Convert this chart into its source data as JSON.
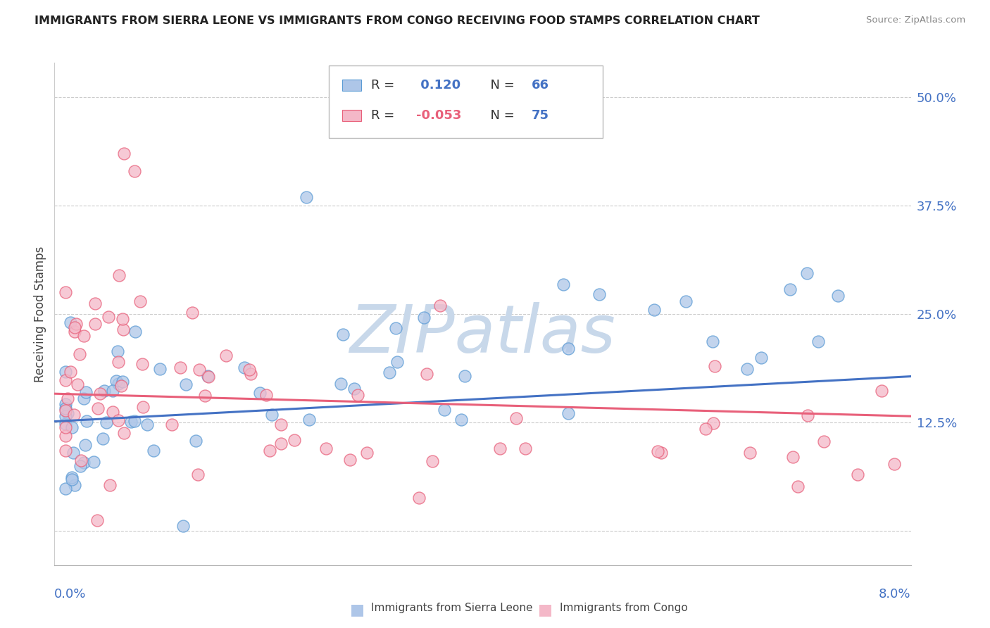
{
  "title": "IMMIGRANTS FROM SIERRA LEONE VS IMMIGRANTS FROM CONGO RECEIVING FOOD STAMPS CORRELATION CHART",
  "source": "Source: ZipAtlas.com",
  "ylabel": "Receiving Food Stamps",
  "color_blue_fill": "#aec6e8",
  "color_blue_edge": "#5b9bd5",
  "color_pink_fill": "#f4b8c8",
  "color_pink_edge": "#e8607a",
  "trendline_blue": "#4472c4",
  "trendline_pink": "#e8607a",
  "watermark_color": "#c8d8ea",
  "xmin": 0.0,
  "xmax": 0.08,
  "ymin": -0.04,
  "ymax": 0.54,
  "ytick_vals": [
    0.0,
    0.125,
    0.25,
    0.375,
    0.5
  ],
  "ytick_labels": [
    "",
    "12.5%",
    "25.0%",
    "37.5%",
    "50.0%"
  ],
  "legend_r1": "0.120",
  "legend_n1": "66",
  "legend_r2": "-0.053",
  "legend_n2": "75",
  "label_sl": "Immigrants from Sierra Leone",
  "label_co": "Immigrants from Congo"
}
